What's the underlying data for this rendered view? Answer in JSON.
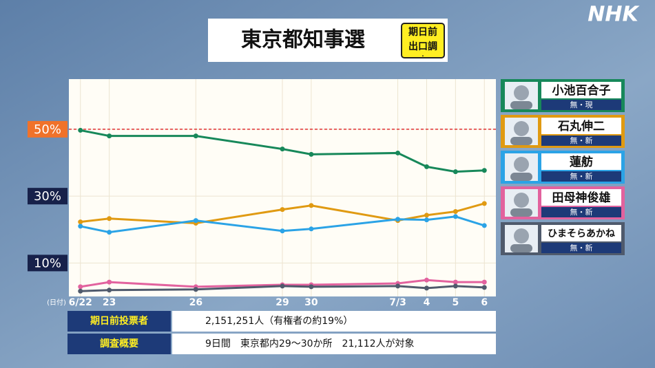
{
  "brand": "NHK",
  "chart_data": {
    "type": "line",
    "title": "東京都知事選",
    "badge": "期日前出口調査",
    "x_label": "(日付)",
    "x": [
      {
        "value": 22,
        "label": "6/22"
      },
      {
        "value": 23,
        "label": "23"
      },
      {
        "value": 26,
        "label": "26"
      },
      {
        "value": 29,
        "label": "29"
      },
      {
        "value": 30,
        "label": "30"
      },
      {
        "value": 33,
        "label": "7/3"
      },
      {
        "value": 34,
        "label": "4"
      },
      {
        "value": 35,
        "label": "5"
      },
      {
        "value": 36,
        "label": "6"
      }
    ],
    "xlim": [
      21.6,
      36.4
    ],
    "ylim": [
      0,
      65
    ],
    "yticks": [
      {
        "value": 10,
        "label": "10%"
      },
      {
        "value": 30,
        "label": "30%"
      },
      {
        "value": 50,
        "label": "50%"
      }
    ],
    "reference_line": 50,
    "grid": true,
    "series": [
      {
        "name": "小池百合子",
        "tag": "無・現",
        "color": "#17885a",
        "values": [
          49.7,
          48.0,
          48.0,
          44.1,
          42.5,
          42.9,
          38.8,
          37.3,
          37.7
        ]
      },
      {
        "name": "石丸伸二",
        "tag": "無・新",
        "color": "#e09a12",
        "values": [
          22.3,
          23.3,
          21.9,
          26.0,
          27.2,
          22.7,
          24.3,
          25.4,
          27.8
        ]
      },
      {
        "name": "蓮舫",
        "tag": "無・新",
        "color": "#2ba3e6",
        "values": [
          21.0,
          19.2,
          22.7,
          19.6,
          20.2,
          23.1,
          22.9,
          23.9,
          21.2
        ]
      },
      {
        "name": "田母神俊雄",
        "tag": "無・新",
        "color": "#e2629e",
        "values": [
          2.9,
          4.3,
          2.9,
          3.5,
          3.5,
          3.9,
          4.9,
          4.3,
          4.3
        ]
      },
      {
        "name": "ひまそらあかね",
        "tag": "無・新",
        "color": "#4f5a6c",
        "values": [
          1.6,
          1.9,
          2.1,
          3.1,
          2.9,
          3.1,
          2.5,
          3.1,
          2.7
        ]
      }
    ]
  },
  "table": {
    "rows": [
      [
        "期日前投票者",
        "2,151,251人（有権者の約19%）"
      ],
      [
        "調査概要",
        "9日間　東京都内29〜30か所　21,112人が対象"
      ]
    ]
  }
}
